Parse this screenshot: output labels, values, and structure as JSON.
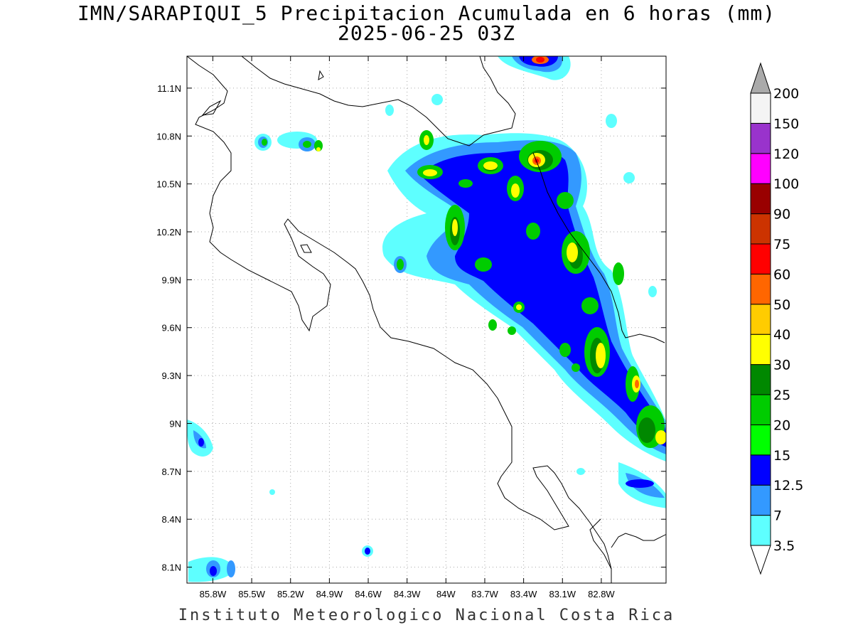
{
  "title_line1": "IMN/SARAPIQUI_5 Precipitacion Acumulada en 6 horas (mm)",
  "title_line2": "2025-06-25 03Z",
  "credit": "Instituto Meteorologico Nacional Costa Rica",
  "map": {
    "lon_range": [
      -86.0,
      -82.3
    ],
    "lat_range": [
      8.0,
      11.3
    ],
    "lon_ticks": [
      "85.8W",
      "85.5W",
      "85.2W",
      "84.9W",
      "84.6W",
      "84.3W",
      "84W",
      "83.7W",
      "83.4W",
      "83.1W",
      "82.8W"
    ],
    "lat_ticks": [
      "11.1N",
      "10.8N",
      "10.5N",
      "10.2N",
      "9.9N",
      "9.6N",
      "9.3N",
      "9N",
      "8.7N",
      "8.4N",
      "8.1N"
    ]
  },
  "colorbar": {
    "levels": [
      "3.5",
      "7",
      "12.5",
      "15",
      "20",
      "25",
      "30",
      "40",
      "50",
      "60",
      "75",
      "90",
      "100",
      "120",
      "150",
      "200"
    ],
    "colors": [
      "#5effff",
      "#3399ff",
      "#0000ff",
      "#00ff00",
      "#00cc00",
      "#008800",
      "#ffff00",
      "#ffcc00",
      "#ff6600",
      "#ff0000",
      "#cc3300",
      "#990000",
      "#ff00ff",
      "#9933cc",
      "#f4f4f4",
      "#aaaaaa"
    ]
  }
}
